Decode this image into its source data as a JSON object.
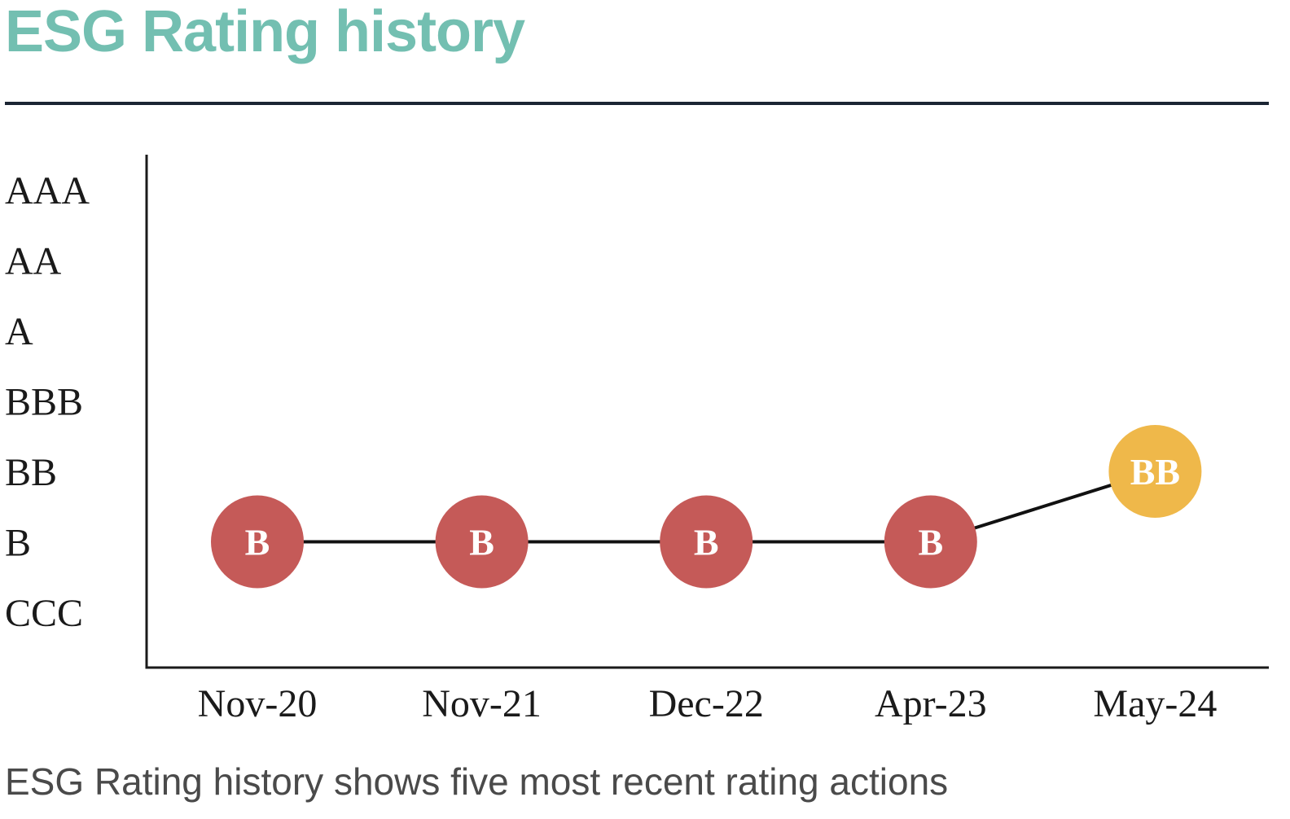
{
  "title": "ESG Rating history",
  "caption": "ESG Rating history shows five most recent rating actions",
  "colors": {
    "title": "#73bfb1",
    "rule": "#1b2533",
    "rating_low": "#c55a58",
    "rating_mid": "#efb84a",
    "line": "#111111"
  },
  "chart_data": {
    "type": "line",
    "title": "ESG Rating history",
    "xlabel": "",
    "ylabel": "",
    "categories": [
      "Nov-20",
      "Nov-21",
      "Dec-22",
      "Apr-23",
      "May-24"
    ],
    "y_categories": [
      "CCC",
      "B",
      "BB",
      "BBB",
      "A",
      "AA",
      "AAA"
    ],
    "series": [
      {
        "values": [
          "B",
          "B",
          "B",
          "B",
          "BB"
        ],
        "point_colors": [
          "#c55a58",
          "#c55a58",
          "#c55a58",
          "#c55a58",
          "#efb84a"
        ]
      }
    ],
    "grid": false,
    "legend": "none"
  }
}
